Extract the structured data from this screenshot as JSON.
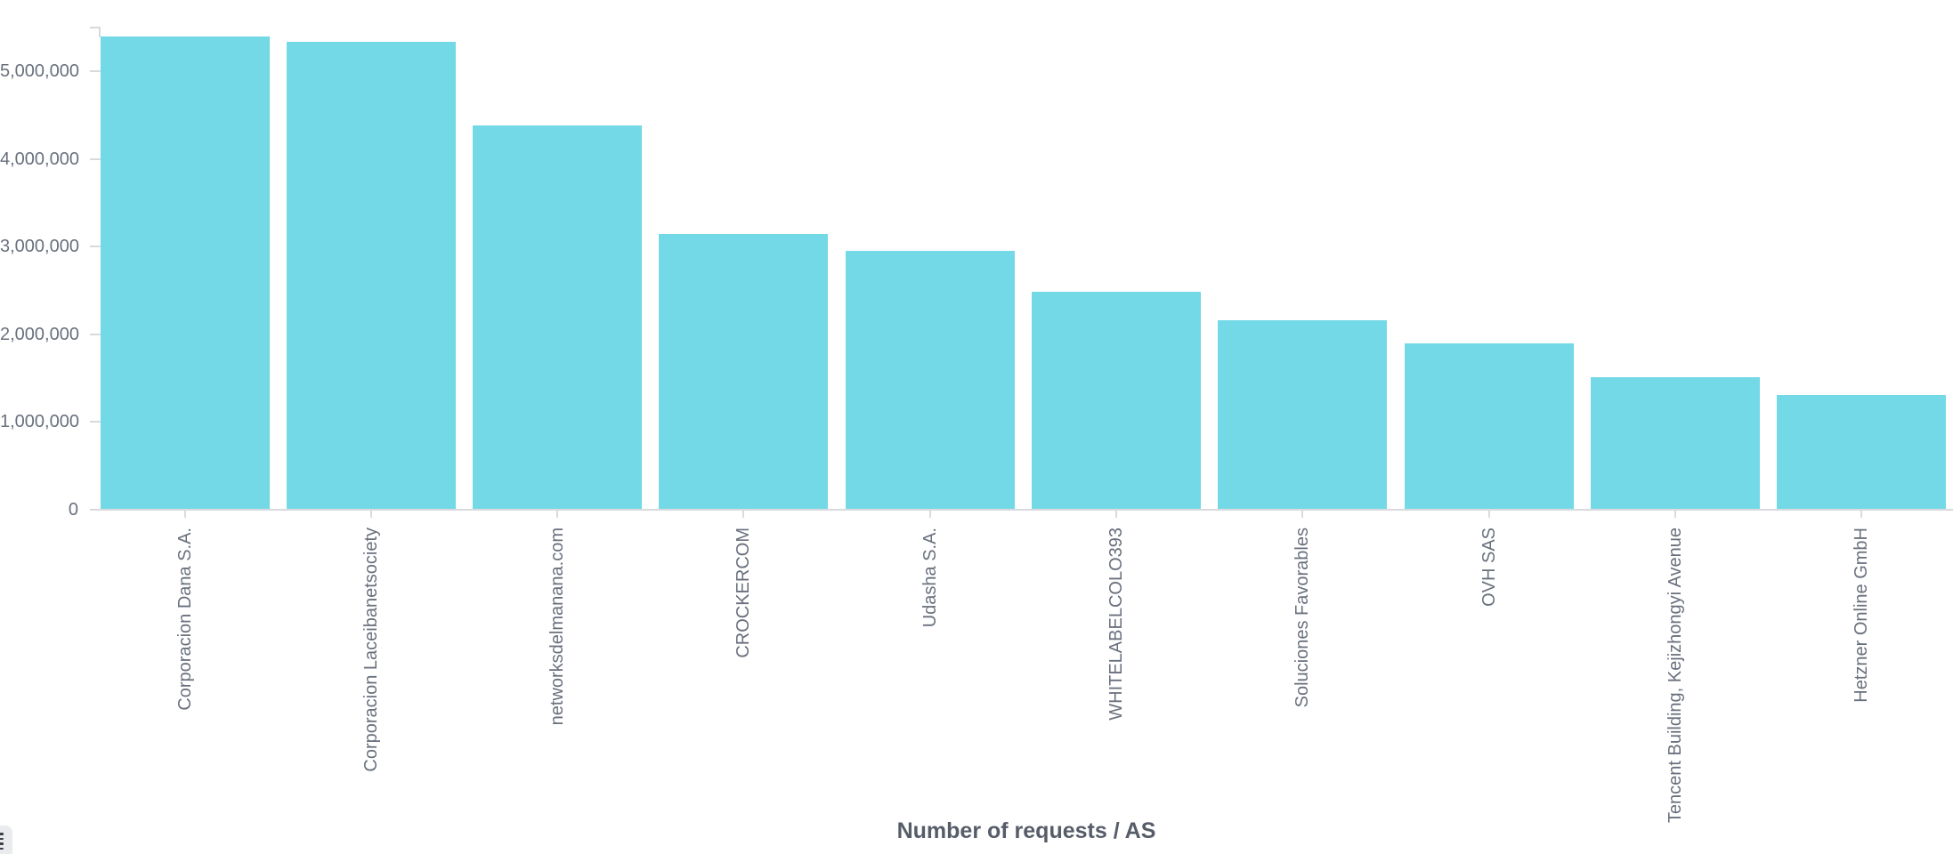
{
  "chart_data": {
    "type": "bar",
    "title": "Number of requests / AS",
    "xlabel": "",
    "ylabel": "",
    "categories": [
      "Corporacion Dana S.A.",
      "Corporacion Laceibanetsociety",
      "networksdelmanana.com",
      "CROCKERCOM",
      "Udasha S.A.",
      "WHITELABELCOLO393",
      "Soluciones Favorables",
      "OVH SAS",
      "Tencent Building, Kejizhongyi Avenue",
      "Hetzner Online GmbH"
    ],
    "values": [
      5400000,
      5330000,
      4380000,
      3140000,
      2950000,
      2480000,
      2160000,
      1900000,
      1510000,
      1310000
    ],
    "y_ticks": [
      "0",
      "1,000,000",
      "2,000,000",
      "3,000,000",
      "4,000,000",
      "5,000,000"
    ],
    "y_tick_values": [
      0,
      1000000,
      2000000,
      3000000,
      4000000,
      5000000
    ],
    "ylim": [
      0,
      5500000
    ],
    "grid": false,
    "legend": false,
    "colors": {
      "bar": "#74d9e6",
      "axis_text": "#69707d",
      "title": "#565d68",
      "axis_line": "#d8dade"
    }
  },
  "panel": {
    "drag_handle_icon": "grip-dashes"
  }
}
